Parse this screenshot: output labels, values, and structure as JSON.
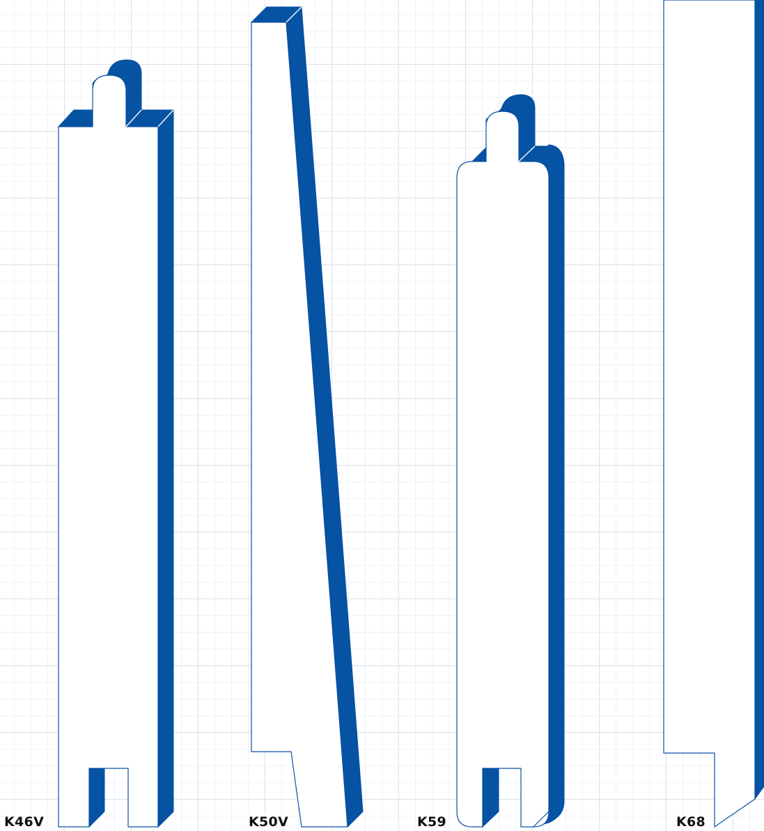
{
  "colors": {
    "profile_fill": "#ffffff",
    "profile_stroke": "#0b4fa2",
    "depth_face": "#0652a3",
    "grid": "#d7e1ee"
  },
  "profiles": [
    {
      "id": "k46v",
      "label": "K46V"
    },
    {
      "id": "k50v",
      "label": "K50V"
    },
    {
      "id": "k59",
      "label": "K59"
    },
    {
      "id": "k68",
      "label": "K68"
    }
  ]
}
